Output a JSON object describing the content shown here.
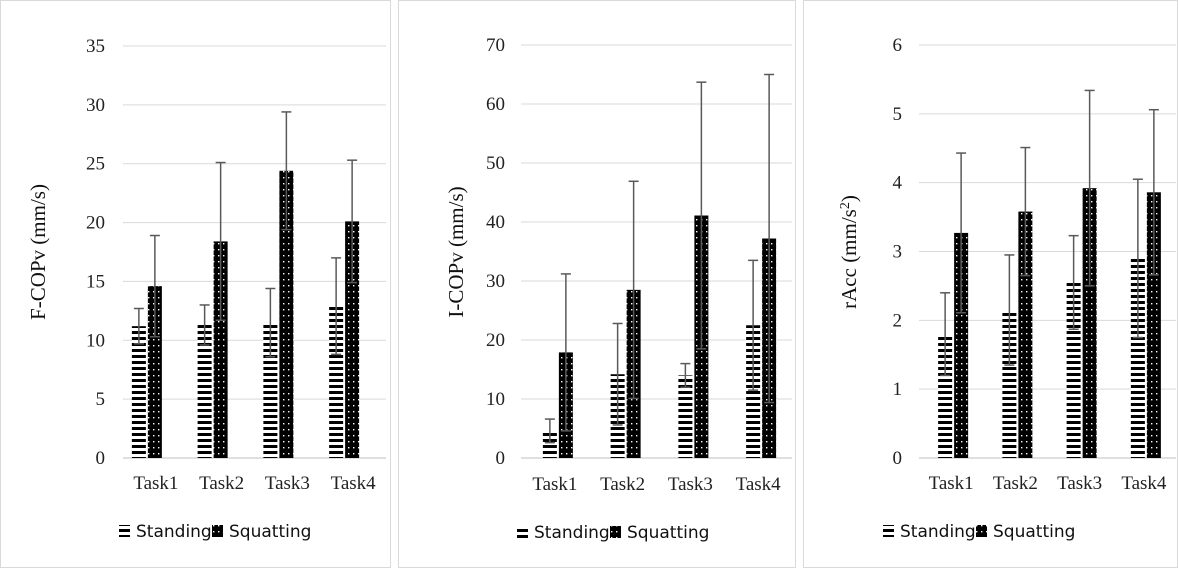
{
  "chart_data": [
    {
      "type": "bar",
      "ylabel": "F-COPv (mm/s)",
      "categories": [
        "Task1",
        "Task2",
        "Task3",
        "Task4"
      ],
      "ylim": [
        0,
        35
      ],
      "yticks": [
        0,
        5,
        10,
        15,
        20,
        25,
        30,
        35
      ],
      "grid": true,
      "legend": "bottom",
      "series": [
        {
          "name": "Standing",
          "pattern": "horizontal-stripes",
          "values": [
            11.2,
            11.3,
            11.5,
            12.9
          ],
          "error": [
            1.5,
            1.7,
            2.9,
            4.1
          ]
        },
        {
          "name": "Squatting",
          "pattern": "dotted-dark",
          "values": [
            14.6,
            18.4,
            24.4,
            20.1
          ],
          "error": [
            4.3,
            6.7,
            5.0,
            5.2
          ]
        }
      ]
    },
    {
      "type": "bar",
      "ylabel": "I-COPv (mm/s)",
      "categories": [
        "Task1",
        "Task2",
        "Task3",
        "Task4"
      ],
      "ylim": [
        0,
        70
      ],
      "yticks": [
        0,
        10,
        20,
        30,
        40,
        50,
        60,
        70
      ],
      "grid": true,
      "legend": "bottom",
      "series": [
        {
          "name": "Standing",
          "pattern": "horizontal-stripes",
          "values": [
            4.6,
            14.2,
            14.0,
            22.5
          ],
          "error": [
            2.0,
            8.6,
            2.0,
            11.0
          ]
        },
        {
          "name": "Squatting",
          "pattern": "dotted-dark",
          "values": [
            17.9,
            28.5,
            41.1,
            37.2
          ],
          "error": [
            13.3,
            18.4,
            22.6,
            27.8
          ]
        }
      ]
    },
    {
      "type": "bar",
      "ylabel": "rAcc (mm/s",
      "ylabel_sup": "2",
      "ylabel_suffix": ")",
      "categories": [
        "Task1",
        "Task2",
        "Task3",
        "Task4"
      ],
      "ylim": [
        0,
        6
      ],
      "yticks": [
        0,
        1,
        2,
        3,
        4,
        5,
        6
      ],
      "grid": true,
      "legend": "bottom",
      "series": [
        {
          "name": "Standing",
          "pattern": "horizontal-stripes",
          "values": [
            1.8,
            2.15,
            2.55,
            2.9
          ],
          "error": [
            0.6,
            0.8,
            0.68,
            1.15
          ]
        },
        {
          "name": "Squatting",
          "pattern": "dotted-dark",
          "values": [
            3.27,
            3.58,
            3.92,
            3.86
          ],
          "error": [
            1.16,
            0.93,
            1.42,
            1.2
          ]
        }
      ]
    }
  ]
}
